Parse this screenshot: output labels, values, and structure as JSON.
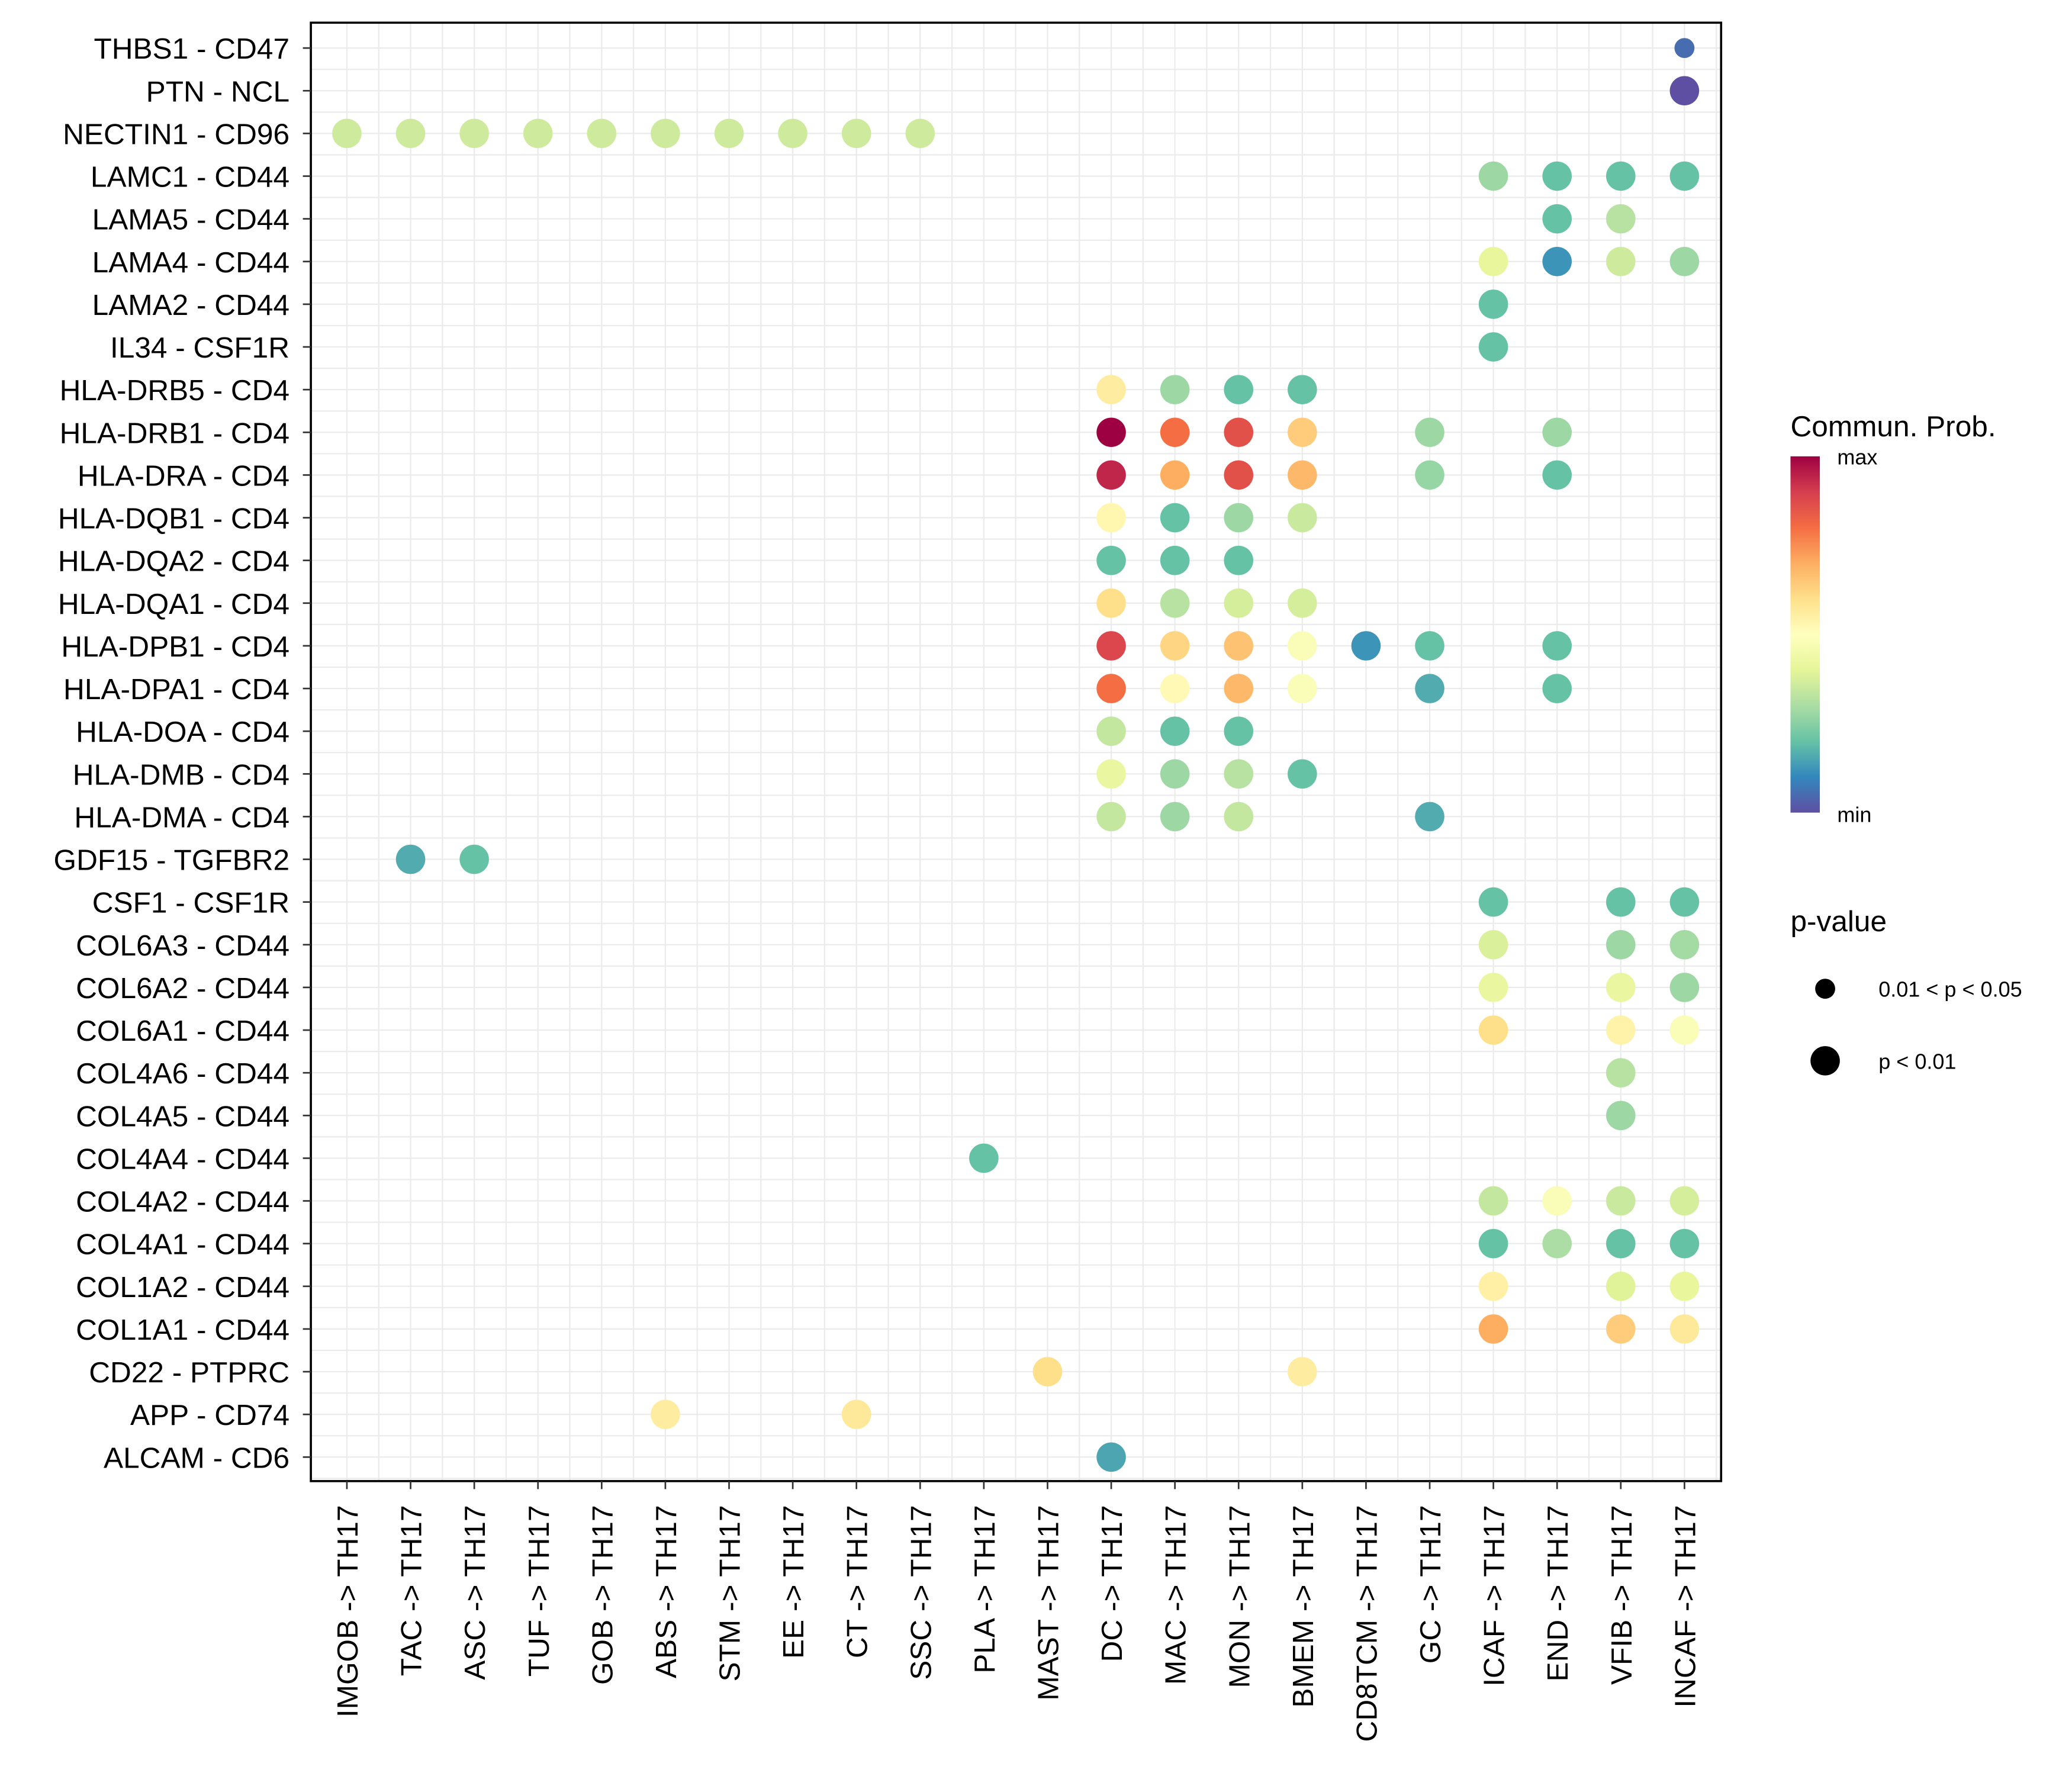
{
  "chart_data": {
    "type": "scatter",
    "subtype": "dot-plot",
    "title": "",
    "xlabel": "",
    "ylabel": "",
    "grid": true,
    "x_categories": [
      "IMGOB -> TH17",
      "TAC -> TH17",
      "ASC -> TH17",
      "TUF -> TH17",
      "GOB -> TH17",
      "ABS -> TH17",
      "STM -> TH17",
      "EE -> TH17",
      "CT -> TH17",
      "SSC -> TH17",
      "PLA -> TH17",
      "MAST -> TH17",
      "DC -> TH17",
      "MAC -> TH17",
      "MON -> TH17",
      "BMEM -> TH17",
      "CD8TCM -> TH17",
      "GC -> TH17",
      "ICAF -> TH17",
      "END -> TH17",
      "VFIB -> TH17",
      "INCAF -> TH17"
    ],
    "y_categories": [
      "THBS1 - CD47",
      "PTN - NCL",
      "NECTIN1 - CD96",
      "LAMC1 - CD44",
      "LAMA5 - CD44",
      "LAMA4 - CD44",
      "LAMA2 - CD44",
      "IL34 - CSF1R",
      "HLA-DRB5 - CD4",
      "HLA-DRB1 - CD4",
      "HLA-DRA - CD4",
      "HLA-DQB1 - CD4",
      "HLA-DQA2 - CD4",
      "HLA-DQA1 - CD4",
      "HLA-DPB1 - CD4",
      "HLA-DPA1 - CD4",
      "HLA-DOA - CD4",
      "HLA-DMB - CD4",
      "HLA-DMA - CD4",
      "GDF15 - TGFBR2",
      "CSF1 - CSF1R",
      "COL6A3 - CD44",
      "COL6A2 - CD44",
      "COL6A1 - CD44",
      "COL4A6 - CD44",
      "COL4A5 - CD44",
      "COL4A4 - CD44",
      "COL4A2 - CD44",
      "COL4A1 - CD44",
      "COL1A2 - CD44",
      "COL1A1 - CD44",
      "CD22 - PTPRC",
      "APP - CD74",
      "ALCAM - CD6"
    ],
    "color_scale": {
      "title": "Commun. Prob.",
      "max_label": "max",
      "min_label": "min",
      "palette": [
        "#5E4FA2",
        "#3288BD",
        "#66C2A5",
        "#ABDDA4",
        "#E6F598",
        "#FFFFBF",
        "#FEE08B",
        "#FDAE61",
        "#F46D43",
        "#D53E4F",
        "#9E0142"
      ]
    },
    "size_scale": {
      "title": "p-value",
      "entries": [
        {
          "label": "0.01 < p < 0.05",
          "level": "small"
        },
        {
          "label": "p < 0.01",
          "level": "large"
        }
      ]
    },
    "points": [
      {
        "y": "THBS1 - CD47",
        "x": "INCAF -> TH17",
        "prob": 0.05,
        "p": "0.01 < p < 0.05"
      },
      {
        "y": "PTN - NCL",
        "x": "INCAF -> TH17",
        "prob": 0.0,
        "p": "p < 0.01"
      },
      {
        "y": "NECTIN1 - CD96",
        "x": "IMGOB -> TH17",
        "prob": 0.36,
        "p": "p < 0.01"
      },
      {
        "y": "NECTIN1 - CD96",
        "x": "TAC -> TH17",
        "prob": 0.36,
        "p": "p < 0.01"
      },
      {
        "y": "NECTIN1 - CD96",
        "x": "ASC -> TH17",
        "prob": 0.36,
        "p": "p < 0.01"
      },
      {
        "y": "NECTIN1 - CD96",
        "x": "TUF -> TH17",
        "prob": 0.36,
        "p": "p < 0.01"
      },
      {
        "y": "NECTIN1 - CD96",
        "x": "GOB -> TH17",
        "prob": 0.36,
        "p": "p < 0.01"
      },
      {
        "y": "NECTIN1 - CD96",
        "x": "ABS -> TH17",
        "prob": 0.36,
        "p": "p < 0.01"
      },
      {
        "y": "NECTIN1 - CD96",
        "x": "STM -> TH17",
        "prob": 0.36,
        "p": "p < 0.01"
      },
      {
        "y": "NECTIN1 - CD96",
        "x": "EE -> TH17",
        "prob": 0.36,
        "p": "p < 0.01"
      },
      {
        "y": "NECTIN1 - CD96",
        "x": "CT -> TH17",
        "prob": 0.36,
        "p": "p < 0.01"
      },
      {
        "y": "NECTIN1 - CD96",
        "x": "SSC -> TH17",
        "prob": 0.36,
        "p": "p < 0.01"
      },
      {
        "y": "LAMC1 - CD44",
        "x": "ICAF -> TH17",
        "prob": 0.28,
        "p": "p < 0.01"
      },
      {
        "y": "LAMC1 - CD44",
        "x": "END -> TH17",
        "prob": 0.2,
        "p": "p < 0.01"
      },
      {
        "y": "LAMC1 - CD44",
        "x": "VFIB -> TH17",
        "prob": 0.2,
        "p": "p < 0.01"
      },
      {
        "y": "LAMC1 - CD44",
        "x": "INCAF -> TH17",
        "prob": 0.2,
        "p": "p < 0.01"
      },
      {
        "y": "LAMA5 - CD44",
        "x": "END -> TH17",
        "prob": 0.2,
        "p": "p < 0.01"
      },
      {
        "y": "LAMA5 - CD44",
        "x": "VFIB -> TH17",
        "prob": 0.32,
        "p": "p < 0.01"
      },
      {
        "y": "LAMA4 - CD44",
        "x": "ICAF -> TH17",
        "prob": 0.41,
        "p": "p < 0.01"
      },
      {
        "y": "LAMA4 - CD44",
        "x": "END -> TH17",
        "prob": 0.12,
        "p": "p < 0.01"
      },
      {
        "y": "LAMA4 - CD44",
        "x": "VFIB -> TH17",
        "prob": 0.36,
        "p": "p < 0.01"
      },
      {
        "y": "LAMA4 - CD44",
        "x": "INCAF -> TH17",
        "prob": 0.28,
        "p": "p < 0.01"
      },
      {
        "y": "LAMA2 - CD44",
        "x": "ICAF -> TH17",
        "prob": 0.2,
        "p": "p < 0.01"
      },
      {
        "y": "IL34 - CSF1R",
        "x": "ICAF -> TH17",
        "prob": 0.2,
        "p": "p < 0.01"
      },
      {
        "y": "HLA-DRB5 - CD4",
        "x": "DC -> TH17",
        "prob": 0.56,
        "p": "p < 0.01"
      },
      {
        "y": "HLA-DRB5 - CD4",
        "x": "MAC -> TH17",
        "prob": 0.28,
        "p": "p < 0.01"
      },
      {
        "y": "HLA-DRB5 - CD4",
        "x": "MON -> TH17",
        "prob": 0.2,
        "p": "p < 0.01"
      },
      {
        "y": "HLA-DRB5 - CD4",
        "x": "BMEM -> TH17",
        "prob": 0.2,
        "p": "p < 0.01"
      },
      {
        "y": "HLA-DRB1 - CD4",
        "x": "DC -> TH17",
        "prob": 1.0,
        "p": "p < 0.01"
      },
      {
        "y": "HLA-DRB1 - CD4",
        "x": "MAC -> TH17",
        "prob": 0.8,
        "p": "p < 0.01"
      },
      {
        "y": "HLA-DRB1 - CD4",
        "x": "MON -> TH17",
        "prob": 0.86,
        "p": "p < 0.01"
      },
      {
        "y": "HLA-DRB1 - CD4",
        "x": "BMEM -> TH17",
        "prob": 0.64,
        "p": "p < 0.01"
      },
      {
        "y": "HLA-DRB1 - CD4",
        "x": "GC -> TH17",
        "prob": 0.28,
        "p": "p < 0.01"
      },
      {
        "y": "HLA-DRB1 - CD4",
        "x": "END -> TH17",
        "prob": 0.28,
        "p": "p < 0.01"
      },
      {
        "y": "HLA-DRA - CD4",
        "x": "DC -> TH17",
        "prob": 0.94,
        "p": "p < 0.01"
      },
      {
        "y": "HLA-DRA - CD4",
        "x": "MAC -> TH17",
        "prob": 0.7,
        "p": "p < 0.01"
      },
      {
        "y": "HLA-DRA - CD4",
        "x": "MON -> TH17",
        "prob": 0.86,
        "p": "p < 0.01"
      },
      {
        "y": "HLA-DRA - CD4",
        "x": "BMEM -> TH17",
        "prob": 0.68,
        "p": "p < 0.01"
      },
      {
        "y": "HLA-DRA - CD4",
        "x": "GC -> TH17",
        "prob": 0.27,
        "p": "p < 0.01"
      },
      {
        "y": "HLA-DRA - CD4",
        "x": "END -> TH17",
        "prob": 0.2,
        "p": "p < 0.01"
      },
      {
        "y": "HLA-DQB1 - CD4",
        "x": "DC -> TH17",
        "prob": 0.53,
        "p": "p < 0.01"
      },
      {
        "y": "HLA-DQB1 - CD4",
        "x": "MAC -> TH17",
        "prob": 0.2,
        "p": "p < 0.01"
      },
      {
        "y": "HLA-DQB1 - CD4",
        "x": "MON -> TH17",
        "prob": 0.28,
        "p": "p < 0.01"
      },
      {
        "y": "HLA-DQB1 - CD4",
        "x": "BMEM -> TH17",
        "prob": 0.35,
        "p": "p < 0.01"
      },
      {
        "y": "HLA-DQA2 - CD4",
        "x": "DC -> TH17",
        "prob": 0.2,
        "p": "p < 0.01"
      },
      {
        "y": "HLA-DQA2 - CD4",
        "x": "MAC -> TH17",
        "prob": 0.2,
        "p": "p < 0.01"
      },
      {
        "y": "HLA-DQA2 - CD4",
        "x": "MON -> TH17",
        "prob": 0.2,
        "p": "p < 0.01"
      },
      {
        "y": "HLA-DQA1 - CD4",
        "x": "DC -> TH17",
        "prob": 0.6,
        "p": "p < 0.01"
      },
      {
        "y": "HLA-DQA1 - CD4",
        "x": "MAC -> TH17",
        "prob": 0.32,
        "p": "p < 0.01"
      },
      {
        "y": "HLA-DQA1 - CD4",
        "x": "MON -> TH17",
        "prob": 0.37,
        "p": "p < 0.01"
      },
      {
        "y": "HLA-DQA1 - CD4",
        "x": "BMEM -> TH17",
        "prob": 0.37,
        "p": "p < 0.01"
      },
      {
        "y": "HLA-DPB1 - CD4",
        "x": "DC -> TH17",
        "prob": 0.88,
        "p": "p < 0.01"
      },
      {
        "y": "HLA-DPB1 - CD4",
        "x": "MAC -> TH17",
        "prob": 0.62,
        "p": "p < 0.01"
      },
      {
        "y": "HLA-DPB1 - CD4",
        "x": "MON -> TH17",
        "prob": 0.66,
        "p": "p < 0.01"
      },
      {
        "y": "HLA-DPB1 - CD4",
        "x": "BMEM -> TH17",
        "prob": 0.48,
        "p": "p < 0.01"
      },
      {
        "y": "HLA-DPB1 - CD4",
        "x": "CD8TCM -> TH17",
        "prob": 0.12,
        "p": "p < 0.01"
      },
      {
        "y": "HLA-DPB1 - CD4",
        "x": "GC -> TH17",
        "prob": 0.2,
        "p": "p < 0.01"
      },
      {
        "y": "HLA-DPB1 - CD4",
        "x": "END -> TH17",
        "prob": 0.2,
        "p": "p < 0.01"
      },
      {
        "y": "HLA-DPA1 - CD4",
        "x": "DC -> TH17",
        "prob": 0.8,
        "p": "p < 0.01"
      },
      {
        "y": "HLA-DPA1 - CD4",
        "x": "MAC -> TH17",
        "prob": 0.52,
        "p": "p < 0.01"
      },
      {
        "y": "HLA-DPA1 - CD4",
        "x": "MON -> TH17",
        "prob": 0.68,
        "p": "p < 0.01"
      },
      {
        "y": "HLA-DPA1 - CD4",
        "x": "BMEM -> TH17",
        "prob": 0.48,
        "p": "p < 0.01"
      },
      {
        "y": "HLA-DPA1 - CD4",
        "x": "GC -> TH17",
        "prob": 0.16,
        "p": "p < 0.01"
      },
      {
        "y": "HLA-DPA1 - CD4",
        "x": "END -> TH17",
        "prob": 0.2,
        "p": "p < 0.01"
      },
      {
        "y": "HLA-DOA - CD4",
        "x": "DC -> TH17",
        "prob": 0.34,
        "p": "p < 0.01"
      },
      {
        "y": "HLA-DOA - CD4",
        "x": "MAC -> TH17",
        "prob": 0.2,
        "p": "p < 0.01"
      },
      {
        "y": "HLA-DOA - CD4",
        "x": "MON -> TH17",
        "prob": 0.2,
        "p": "p < 0.01"
      },
      {
        "y": "HLA-DMB - CD4",
        "x": "DC -> TH17",
        "prob": 0.42,
        "p": "p < 0.01"
      },
      {
        "y": "HLA-DMB - CD4",
        "x": "MAC -> TH17",
        "prob": 0.28,
        "p": "p < 0.01"
      },
      {
        "y": "HLA-DMB - CD4",
        "x": "MON -> TH17",
        "prob": 0.32,
        "p": "p < 0.01"
      },
      {
        "y": "HLA-DMB - CD4",
        "x": "BMEM -> TH17",
        "prob": 0.2,
        "p": "p < 0.01"
      },
      {
        "y": "HLA-DMA - CD4",
        "x": "DC -> TH17",
        "prob": 0.34,
        "p": "p < 0.01"
      },
      {
        "y": "HLA-DMA - CD4",
        "x": "MAC -> TH17",
        "prob": 0.28,
        "p": "p < 0.01"
      },
      {
        "y": "HLA-DMA - CD4",
        "x": "MON -> TH17",
        "prob": 0.34,
        "p": "p < 0.01"
      },
      {
        "y": "HLA-DMA - CD4",
        "x": "GC -> TH17",
        "prob": 0.16,
        "p": "p < 0.01"
      },
      {
        "y": "GDF15 - TGFBR2",
        "x": "TAC -> TH17",
        "prob": 0.16,
        "p": "p < 0.01"
      },
      {
        "y": "GDF15 - TGFBR2",
        "x": "ASC -> TH17",
        "prob": 0.2,
        "p": "p < 0.01"
      },
      {
        "y": "CSF1 - CSF1R",
        "x": "ICAF -> TH17",
        "prob": 0.2,
        "p": "p < 0.01"
      },
      {
        "y": "CSF1 - CSF1R",
        "x": "VFIB -> TH17",
        "prob": 0.2,
        "p": "p < 0.01"
      },
      {
        "y": "CSF1 - CSF1R",
        "x": "INCAF -> TH17",
        "prob": 0.2,
        "p": "p < 0.01"
      },
      {
        "y": "COL6A3 - CD44",
        "x": "ICAF -> TH17",
        "prob": 0.38,
        "p": "p < 0.01"
      },
      {
        "y": "COL6A3 - CD44",
        "x": "VFIB -> TH17",
        "prob": 0.28,
        "p": "p < 0.01"
      },
      {
        "y": "COL6A3 - CD44",
        "x": "INCAF -> TH17",
        "prob": 0.29,
        "p": "p < 0.01"
      },
      {
        "y": "COL6A2 - CD44",
        "x": "ICAF -> TH17",
        "prob": 0.42,
        "p": "p < 0.01"
      },
      {
        "y": "COL6A2 - CD44",
        "x": "VFIB -> TH17",
        "prob": 0.42,
        "p": "p < 0.01"
      },
      {
        "y": "COL6A2 - CD44",
        "x": "INCAF -> TH17",
        "prob": 0.28,
        "p": "p < 0.01"
      },
      {
        "y": "COL6A1 - CD44",
        "x": "ICAF -> TH17",
        "prob": 0.6,
        "p": "p < 0.01"
      },
      {
        "y": "COL6A1 - CD44",
        "x": "VFIB -> TH17",
        "prob": 0.54,
        "p": "p < 0.01"
      },
      {
        "y": "COL6A1 - CD44",
        "x": "INCAF -> TH17",
        "prob": 0.48,
        "p": "p < 0.01"
      },
      {
        "y": "COL4A6 - CD44",
        "x": "VFIB -> TH17",
        "prob": 0.32,
        "p": "p < 0.01"
      },
      {
        "y": "COL4A5 - CD44",
        "x": "VFIB -> TH17",
        "prob": 0.28,
        "p": "p < 0.01"
      },
      {
        "y": "COL4A4 - CD44",
        "x": "PLA -> TH17",
        "prob": 0.2,
        "p": "p < 0.01"
      },
      {
        "y": "COL4A2 - CD44",
        "x": "ICAF -> TH17",
        "prob": 0.34,
        "p": "p < 0.01"
      },
      {
        "y": "COL4A2 - CD44",
        "x": "END -> TH17",
        "prob": 0.48,
        "p": "p < 0.01"
      },
      {
        "y": "COL4A2 - CD44",
        "x": "VFIB -> TH17",
        "prob": 0.35,
        "p": "p < 0.01"
      },
      {
        "y": "COL4A2 - CD44",
        "x": "INCAF -> TH17",
        "prob": 0.37,
        "p": "p < 0.01"
      },
      {
        "y": "COL4A1 - CD44",
        "x": "ICAF -> TH17",
        "prob": 0.2,
        "p": "p < 0.01"
      },
      {
        "y": "COL4A1 - CD44",
        "x": "END -> TH17",
        "prob": 0.3,
        "p": "p < 0.01"
      },
      {
        "y": "COL4A1 - CD44",
        "x": "VFIB -> TH17",
        "prob": 0.2,
        "p": "p < 0.01"
      },
      {
        "y": "COL4A1 - CD44",
        "x": "INCAF -> TH17",
        "prob": 0.2,
        "p": "p < 0.01"
      },
      {
        "y": "COL1A2 - CD44",
        "x": "ICAF -> TH17",
        "prob": 0.55,
        "p": "p < 0.01"
      },
      {
        "y": "COL1A2 - CD44",
        "x": "VFIB -> TH17",
        "prob": 0.39,
        "p": "p < 0.01"
      },
      {
        "y": "COL1A2 - CD44",
        "x": "INCAF -> TH17",
        "prob": 0.41,
        "p": "p < 0.01"
      },
      {
        "y": "COL1A1 - CD44",
        "x": "ICAF -> TH17",
        "prob": 0.7,
        "p": "p < 0.01"
      },
      {
        "y": "COL1A1 - CD44",
        "x": "VFIB -> TH17",
        "prob": 0.64,
        "p": "p < 0.01"
      },
      {
        "y": "COL1A1 - CD44",
        "x": "INCAF -> TH17",
        "prob": 0.57,
        "p": "p < 0.01"
      },
      {
        "y": "CD22 - PTPRC",
        "x": "MAST -> TH17",
        "prob": 0.6,
        "p": "p < 0.01"
      },
      {
        "y": "CD22 - PTPRC",
        "x": "BMEM -> TH17",
        "prob": 0.56,
        "p": "p < 0.01"
      },
      {
        "y": "APP - CD74",
        "x": "ABS -> TH17",
        "prob": 0.56,
        "p": "p < 0.01"
      },
      {
        "y": "APP - CD74",
        "x": "CT -> TH17",
        "prob": 0.57,
        "p": "p < 0.01"
      },
      {
        "y": "ALCAM - CD6",
        "x": "DC -> TH17",
        "prob": 0.15,
        "p": "p < 0.01"
      }
    ]
  }
}
